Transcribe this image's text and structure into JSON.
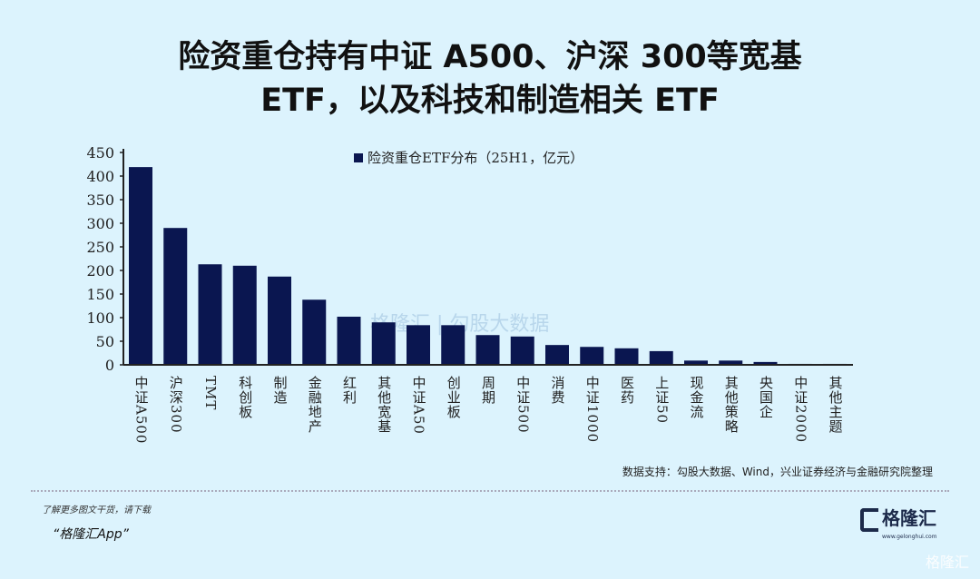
{
  "title_line1": "险资重仓持有中证 A500、沪深 300等宽基",
  "title_line2": "ETF，以及科技和制造相关 ETF",
  "colors": {
    "bar": "#0a1650",
    "background": "#dcf3fd"
  },
  "chart_data": {
    "type": "bar",
    "categories": [
      "中证A500",
      "沪深300",
      "TMT",
      "科创板",
      "制造",
      "金融地产",
      "红利",
      "其他宽基",
      "中证A50",
      "创业板",
      "周期",
      "中证500",
      "消费",
      "中证1000",
      "医药",
      "上证50",
      "现金流",
      "其他策略",
      "央国企",
      "中证2000",
      "其他主题"
    ],
    "series": [
      {
        "name": "险资重仓ETF分布（25H1，亿元）",
        "values": [
          419,
          290,
          213,
          210,
          187,
          138,
          102,
          90,
          84,
          84,
          63,
          60,
          42,
          38,
          35,
          29,
          9,
          9,
          6,
          2,
          2
        ]
      }
    ],
    "yticks": [
      0,
      50,
      100,
      150,
      200,
      250,
      300,
      350,
      400,
      450
    ],
    "ylim": [
      0,
      450
    ],
    "legend_position": "top",
    "grid": false
  },
  "source": "数据支持：勾股大数据、Wind，兴业证券经济与金融研究院整理",
  "watermark": "格隆汇 | 勾股大数据",
  "promo_line1": "了解更多图文干货，请下载",
  "promo_line2": "“格隆汇App”",
  "logo_text": "格隆汇",
  "logo_url": "www.gelonghui.com",
  "corner_watermark": "格隆汇"
}
